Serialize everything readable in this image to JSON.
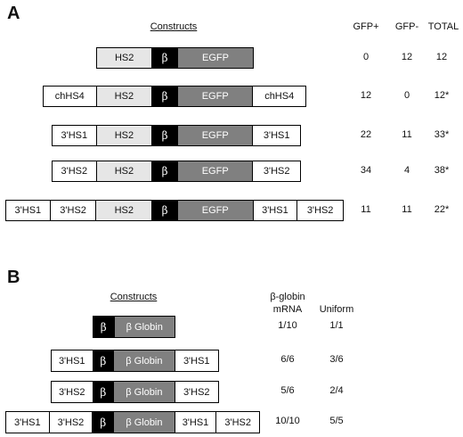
{
  "panelA": {
    "label": "A",
    "constructs_header": "Constructs",
    "col_headers": [
      "GFP+",
      "GFP-",
      "TOTAL"
    ],
    "rows": [
      {
        "segments": [
          "HS2",
          "β",
          "EGFP"
        ],
        "values": [
          "0",
          "12",
          "12"
        ]
      },
      {
        "segments": [
          "chHS4",
          "HS2",
          "β",
          "EGFP",
          "chHS4"
        ],
        "values": [
          "12",
          "0",
          "12*"
        ]
      },
      {
        "segments": [
          "3'HS1",
          "HS2",
          "β",
          "EGFP",
          "3'HS1"
        ],
        "values": [
          "22",
          "11",
          "33*"
        ]
      },
      {
        "segments": [
          "3'HS2",
          "HS2",
          "β",
          "EGFP",
          "3'HS2"
        ],
        "values": [
          "34",
          "4",
          "38*"
        ]
      },
      {
        "segments": [
          "3'HS1",
          "3'HS2",
          "HS2",
          "β",
          "EGFP",
          "3'HS1",
          "3'HS2"
        ],
        "values": [
          "11",
          "11",
          "22*"
        ]
      }
    ]
  },
  "panelB": {
    "label": "B",
    "constructs_header": "Constructs",
    "col_headers": {
      "mrna_line1": "β-globin",
      "mrna_line2": "mRNA",
      "uniform": "Uniform"
    },
    "rows": [
      {
        "segments": [
          "β",
          "β Globin"
        ],
        "values": [
          "1/10",
          "1/1"
        ]
      },
      {
        "segments": [
          "3'HS1",
          "β",
          "β Globin",
          "3'HS1"
        ],
        "values": [
          "6/6",
          "3/6"
        ]
      },
      {
        "segments": [
          "3'HS2",
          "β",
          "β Globin",
          "3'HS2"
        ],
        "values": [
          "5/6",
          "2/4"
        ]
      },
      {
        "segments": [
          "3'HS1",
          "3'HS2",
          "β",
          "β Globin",
          "3'HS1",
          "3'HS2"
        ],
        "values": [
          "10/10",
          "5/5"
        ]
      }
    ]
  },
  "colors": {
    "black_box": "#000000",
    "egfp_gray": "#808080",
    "hs2_light": "#e6e6e6",
    "outline": "#000000"
  }
}
